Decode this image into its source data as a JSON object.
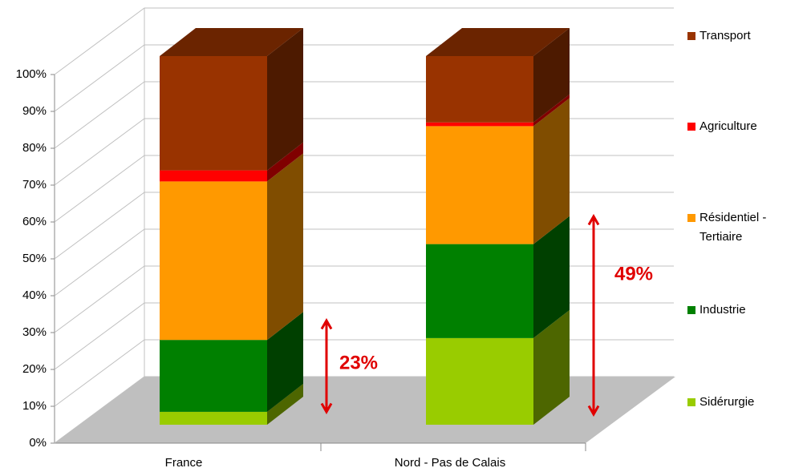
{
  "chart_data": {
    "type": "bar3d_stacked",
    "categories": [
      "France",
      "Nord - Pas de Calais"
    ],
    "series": [
      {
        "name": "Sidérurgie",
        "color": "#99cc00",
        "values": [
          3.5,
          23.5
        ]
      },
      {
        "name": "Industrie",
        "color": "#008000",
        "values": [
          19.5,
          25.5
        ]
      },
      {
        "name": "Résidentiel - Tertiaire",
        "color": "#ff9900",
        "values": [
          43,
          32
        ]
      },
      {
        "name": "Agriculture",
        "color": "#ff0000",
        "values": [
          3,
          1
        ]
      },
      {
        "name": "Transport",
        "color": "#993300",
        "values": [
          31,
          18
        ]
      }
    ],
    "ylim": [
      0,
      100
    ],
    "yticks": [
      {
        "value": 0,
        "label": "0%"
      },
      {
        "value": 10,
        "label": "10%"
      },
      {
        "value": 20,
        "label": "20%"
      },
      {
        "value": 30,
        "label": "30%"
      },
      {
        "value": 40,
        "label": "40%"
      },
      {
        "value": 50,
        "label": "50%"
      },
      {
        "value": 60,
        "label": "60%"
      },
      {
        "value": 70,
        "label": "70%"
      },
      {
        "value": 80,
        "label": "80%"
      },
      {
        "value": 90,
        "label": "90%"
      },
      {
        "value": 100,
        "label": "100%"
      }
    ],
    "grid": true,
    "annotations": [
      {
        "text": "23%"
      },
      {
        "text": "49%"
      }
    ]
  }
}
